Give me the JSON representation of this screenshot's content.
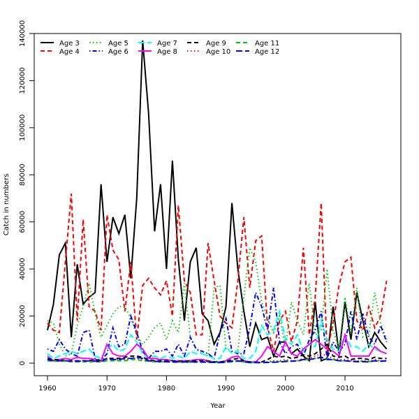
{
  "chart_data": {
    "type": "line",
    "title": "",
    "xlabel": "Year",
    "ylabel": "Catch in numbers",
    "xlim": [
      1958,
      2019
    ],
    "ylim": [
      -5000,
      141000
    ],
    "xticks": [
      1960,
      1970,
      1980,
      1990,
      2000,
      2010
    ],
    "yticks": [
      0,
      20000,
      40000,
      60000,
      80000,
      100000,
      120000,
      140000
    ],
    "grid": false,
    "legend_position": "top-left",
    "x_start": 1960,
    "series": [
      {
        "name": "Age 3",
        "color": "#000000",
        "dash": "solid",
        "values": [
          14000,
          25000,
          46000,
          51000,
          11000,
          42000,
          25000,
          28000,
          30000,
          76000,
          43000,
          62000,
          55000,
          63000,
          36000,
          70000,
          137000,
          106000,
          56000,
          76000,
          40000,
          86000,
          44000,
          18000,
          43000,
          49000,
          21000,
          18000,
          8000,
          13000,
          24000,
          68000,
          40000,
          22000,
          7000,
          17000,
          10000,
          11000,
          3000,
          9000,
          9000,
          4000,
          6000,
          3000,
          1000,
          26000,
          1000,
          2000,
          24000,
          4000,
          26000,
          10000,
          30000,
          18000,
          7000,
          13000,
          9000,
          6000
        ]
      },
      {
        "name": "Age 4",
        "color": "#ff0000",
        "dash": "dashed",
        "values": [
          17000,
          14000,
          13000,
          43000,
          72000,
          18000,
          61000,
          24000,
          22000,
          14000,
          63000,
          48000,
          44000,
          22000,
          43000,
          10000,
          33000,
          36000,
          32000,
          29000,
          35000,
          20000,
          67000,
          35000,
          30000,
          12000,
          12000,
          51000,
          35000,
          20000,
          17000,
          15000,
          35000,
          62000,
          32000,
          52000,
          54000,
          15000,
          5000,
          18000,
          22000,
          9000,
          18000,
          49000,
          12000,
          28000,
          68000,
          5000,
          17000,
          33000,
          43000,
          45000,
          18000,
          14000,
          24000,
          15000,
          20000,
          35000
        ]
      },
      {
        "name": "Age 5",
        "color": "#00cc00",
        "dash": "dotted",
        "values": [
          18000,
          17000,
          8000,
          3000,
          4000,
          16000,
          24000,
          34000,
          21000,
          11000,
          16000,
          21000,
          24000,
          24000,
          19000,
          12000,
          8000,
          11000,
          15000,
          17000,
          10000,
          18000,
          13000,
          34000,
          11000,
          6000,
          4000,
          3000,
          32000,
          33000,
          6000,
          5000,
          5000,
          28000,
          49000,
          43000,
          26000,
          19000,
          13000,
          20000,
          7000,
          26000,
          18000,
          12000,
          34000,
          12000,
          14000,
          40000,
          14000,
          6000,
          28000,
          13000,
          32000,
          11000,
          12000,
          30000,
          17000,
          10000
        ]
      },
      {
        "name": "Age 6",
        "color": "#0000ff",
        "dash": "dashdot",
        "values": [
          6000,
          5000,
          10000,
          6000,
          4000,
          3000,
          13000,
          14000,
          2000,
          1000,
          4000,
          15000,
          7000,
          8000,
          20000,
          13000,
          5000,
          2000,
          5000,
          5000,
          6000,
          3000,
          8000,
          3000,
          11000,
          6000,
          5000,
          4000,
          2000,
          13000,
          19000,
          5000,
          4000,
          4000,
          15000,
          30000,
          24000,
          14000,
          32000,
          9000,
          4000,
          7000,
          8000,
          3000,
          10000,
          14000,
          22000,
          2000,
          9000,
          5000,
          8000,
          22000,
          10000,
          21000,
          11000,
          8000,
          16000,
          9000
        ]
      },
      {
        "name": "Age 7",
        "color": "#00ffff",
        "dash": "longdash",
        "values": [
          4000,
          2000,
          3000,
          4000,
          5000,
          4000,
          5000,
          6000,
          3000,
          2000,
          6000,
          8000,
          5000,
          6000,
          12000,
          9000,
          4000,
          2000,
          3000,
          2000,
          3000,
          2000,
          3000,
          2000,
          5000,
          4000,
          4000,
          3000,
          2000,
          2000,
          7000,
          4000,
          5000,
          2000,
          2000,
          5000,
          16000,
          12000,
          14000,
          22000,
          10000,
          8000,
          12000,
          5000,
          8000,
          7000,
          18000,
          10000,
          6000,
          5000,
          12000,
          7000,
          7000,
          5000,
          8000,
          6000,
          5000,
          4000
        ]
      },
      {
        "name": "Age 8",
        "color": "#ff00ff",
        "dash": "solid",
        "values": [
          3000,
          1000,
          1500,
          2000,
          1500,
          2500,
          2000,
          2000,
          1500,
          1000,
          8000,
          4000,
          3000,
          3000,
          5000,
          8000,
          6000,
          2000,
          2000,
          1500,
          1500,
          1000,
          1000,
          1000,
          1000,
          1500,
          1500,
          1000,
          500,
          500,
          1000,
          2500,
          3000,
          1000,
          500,
          500,
          3000,
          7000,
          5000,
          3000,
          9000,
          4000,
          3000,
          6000,
          8000,
          10000,
          8000,
          6000,
          5000,
          3000,
          12000,
          3000,
          3000,
          3000,
          3000,
          7000,
          5000,
          4000
        ]
      },
      {
        "name": "Age 9",
        "color": "#000000",
        "dash": "dashed",
        "values": [
          2000,
          1500,
          1500,
          1000,
          1000,
          1000,
          1000,
          1000,
          1500,
          1000,
          2000,
          2000,
          2000,
          2500,
          3000,
          3000,
          2500,
          1500,
          1000,
          1000,
          1000,
          1000,
          800,
          800,
          1000,
          1000,
          1000,
          800,
          600,
          500,
          700,
          1500,
          2000,
          1000,
          500,
          400,
          500,
          1500,
          3000,
          2500,
          3000,
          2000,
          2500,
          3500,
          3000,
          4000,
          6000,
          8000,
          3000,
          2500,
          3000,
          1500,
          2000,
          2000,
          1500,
          2500,
          2000,
          2000
        ]
      },
      {
        "name": "Age 10",
        "color": "#ff0000",
        "dash": "dotted",
        "values": [
          1500,
          1000,
          1000,
          1000,
          800,
          800,
          800,
          800,
          800,
          600,
          1500,
          1500,
          1500,
          1500,
          2000,
          2000,
          1500,
          1000,
          800,
          600,
          600,
          600,
          500,
          500,
          500,
          600,
          600,
          500,
          400,
          300,
          500,
          800,
          1000,
          600,
          300,
          300,
          300,
          600,
          1000,
          1000,
          1500,
          1000,
          1000,
          2000,
          2000,
          3000,
          4000,
          3000,
          2000,
          1500,
          1500,
          1000,
          1000,
          1000,
          800,
          1500,
          1000,
          1000
        ]
      },
      {
        "name": "Age 11",
        "color": "#00cc00",
        "dash": "dashed",
        "values": [
          1000,
          800,
          800,
          800,
          600,
          600,
          600,
          600,
          600,
          500,
          1000,
          1000,
          1000,
          1000,
          1500,
          1500,
          1000,
          800,
          600,
          500,
          500,
          400,
          400,
          400,
          400,
          400,
          400,
          400,
          300,
          200,
          400,
          600,
          800,
          500,
          200,
          200,
          200,
          400,
          600,
          700,
          1000,
          800,
          800,
          1500,
          1500,
          2000,
          2500,
          2000,
          1500,
          1000,
          1000,
          800,
          800,
          800,
          600,
          1000,
          800,
          800
        ]
      },
      {
        "name": "Age 12",
        "color": "#0000ff",
        "dash": "longdash",
        "values": [
          1500,
          1000,
          1000,
          1000,
          800,
          800,
          800,
          1000,
          800,
          600,
          2000,
          1500,
          1500,
          2000,
          2000,
          2500,
          2000,
          1000,
          800,
          600,
          600,
          500,
          500,
          500,
          500,
          500,
          500,
          400,
          300,
          200,
          400,
          800,
          1000,
          600,
          200,
          200,
          200,
          300,
          400,
          500,
          700,
          800,
          1000,
          1500,
          1500,
          2000,
          2500,
          1500,
          1500,
          1000,
          1000,
          800,
          600,
          600,
          500,
          1000,
          800,
          1000
        ]
      }
    ]
  }
}
